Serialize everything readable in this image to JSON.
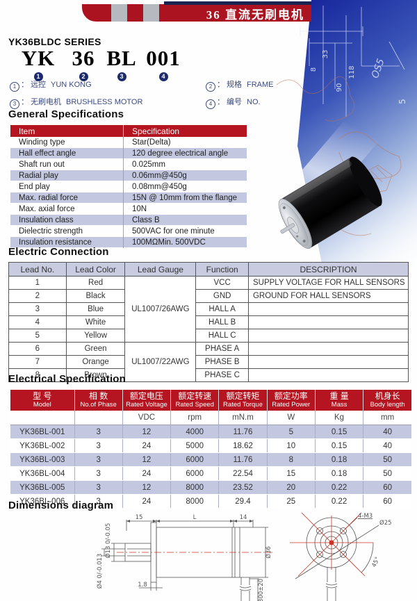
{
  "page": {
    "banner_title": "36 直流无刷电机",
    "series_title": "YK36BLDC SERIES",
    "colon": "："
  },
  "model_code": {
    "parts": [
      {
        "code": "YK",
        "num": "1"
      },
      {
        "code": "36",
        "num": "2"
      },
      {
        "code": "BL",
        "num": "3"
      },
      {
        "code": "001",
        "num": "4"
      }
    ],
    "legend": [
      {
        "num": "1",
        "cn": "远控",
        "en": "YUN KONG"
      },
      {
        "num": "2",
        "cn": "规格",
        "en": "FRAME"
      },
      {
        "num": "3",
        "cn": "无刷电机",
        "en": "BRUSHLESS MOTOR"
      },
      {
        "num": "4",
        "cn": "编号",
        "en": "NO."
      }
    ]
  },
  "general_specifications": {
    "heading": "General Specifications",
    "columns": [
      "Item",
      "Specification"
    ],
    "rows": [
      [
        "Winding type",
        "Star(Delta)"
      ],
      [
        "Hall effect angle",
        "120 degree electrical angle"
      ],
      [
        "Shaft run out",
        "0.025mm"
      ],
      [
        "Radial play",
        "0.06mm@450g"
      ],
      [
        "End play",
        "0.08mm@450g"
      ],
      [
        "Max. radial force",
        "15N @ 10mm from the flange"
      ],
      [
        "Max. axial force",
        "10N"
      ],
      [
        "Insulation class",
        "Class B"
      ],
      [
        "Dielectric strength",
        "500VAC for one minute"
      ],
      [
        "Insulation resistance",
        "100MΩMin. 500VDC"
      ]
    ]
  },
  "electric_connection": {
    "heading": "Electric Connection",
    "columns": [
      "Lead No.",
      "Lead Color",
      "Lead Gauge",
      "Function",
      "DESCRIPTION"
    ],
    "gauges": [
      {
        "label": "UL1007/26AWG",
        "rows": 5
      },
      {
        "label": "UL1007/22AWG",
        "rows": 3
      }
    ],
    "rows": [
      [
        "1",
        "Red",
        "VCC",
        "SUPPLY VOLTAGE FOR HALL SENSORS"
      ],
      [
        "2",
        "Black",
        "GND",
        "GROUND FOR HALL SENSORS"
      ],
      [
        "3",
        "Blue",
        "HALL A",
        ""
      ],
      [
        "4",
        "White",
        "HALL B",
        ""
      ],
      [
        "5",
        "Yellow",
        "HALL C",
        ""
      ],
      [
        "6",
        "Green",
        "PHASE A",
        ""
      ],
      [
        "7",
        "Orange",
        "PHASE B",
        ""
      ],
      [
        "8",
        "Brown",
        "PHASE C",
        ""
      ]
    ]
  },
  "electrical_specification": {
    "heading": "Electrical Specification",
    "columns": [
      {
        "cn": "型  号",
        "en": "Model",
        "unit": ""
      },
      {
        "cn": "相  数",
        "en": "No.of Phase",
        "unit": ""
      },
      {
        "cn": "额定电压",
        "en": "Rated Voltage",
        "unit": "VDC"
      },
      {
        "cn": "额定转速",
        "en": "Rated Speed",
        "unit": "rpm"
      },
      {
        "cn": "额定转矩",
        "en": "Rated Torque",
        "unit": "mN.m"
      },
      {
        "cn": "额定功率",
        "en": "Rated Power",
        "unit": "W"
      },
      {
        "cn": "重  量",
        "en": "Mass",
        "unit": "Kg"
      },
      {
        "cn": "机身长",
        "en": "Body length",
        "unit": "mm"
      }
    ],
    "rows": [
      [
        "YK36BL-001",
        "3",
        "12",
        "4000",
        "11.76",
        "5",
        "0.15",
        "40"
      ],
      [
        "YK36BL-002",
        "3",
        "24",
        "5000",
        "18.62",
        "10",
        "0.15",
        "40"
      ],
      [
        "YK36BL-003",
        "3",
        "12",
        "6000",
        "11.76",
        "8",
        "0.18",
        "50"
      ],
      [
        "YK36BL-004",
        "3",
        "24",
        "6000",
        "22.54",
        "15",
        "0.18",
        "50"
      ],
      [
        "YK36BL-005",
        "3",
        "12",
        "8000",
        "23.52",
        "20",
        "0.22",
        "60"
      ],
      [
        "YK36BL-006",
        "3",
        "24",
        "8000",
        "29.4",
        "25",
        "0.22",
        "60"
      ]
    ]
  },
  "dimensions": {
    "heading": "Dimensions  diagram",
    "labels": {
      "front_len": "15",
      "body_len": "L",
      "rear_len": "14",
      "boss_dia": "Ø13 0/-0.05",
      "shaft_dia": "Ø4 0/-0.013",
      "flange_thickness": "1.8",
      "body_dia": "Ø36",
      "cable_len": "300±20",
      "mount_holes": "4-M3",
      "bolt_circle": "Ø25",
      "hole_angle": "45°"
    }
  },
  "background_drawing": {
    "numbers": [
      "8",
      "33",
      "90",
      "118",
      "OS5",
      "5"
    ]
  },
  "colors": {
    "accent_red": "#ab1320",
    "table_header_red": "#b41520",
    "row_blue": "#c3c8e0",
    "connection_header": "#c9cce0",
    "navy": "#1c2b6e",
    "legend_blue": "#3b4a80"
  }
}
